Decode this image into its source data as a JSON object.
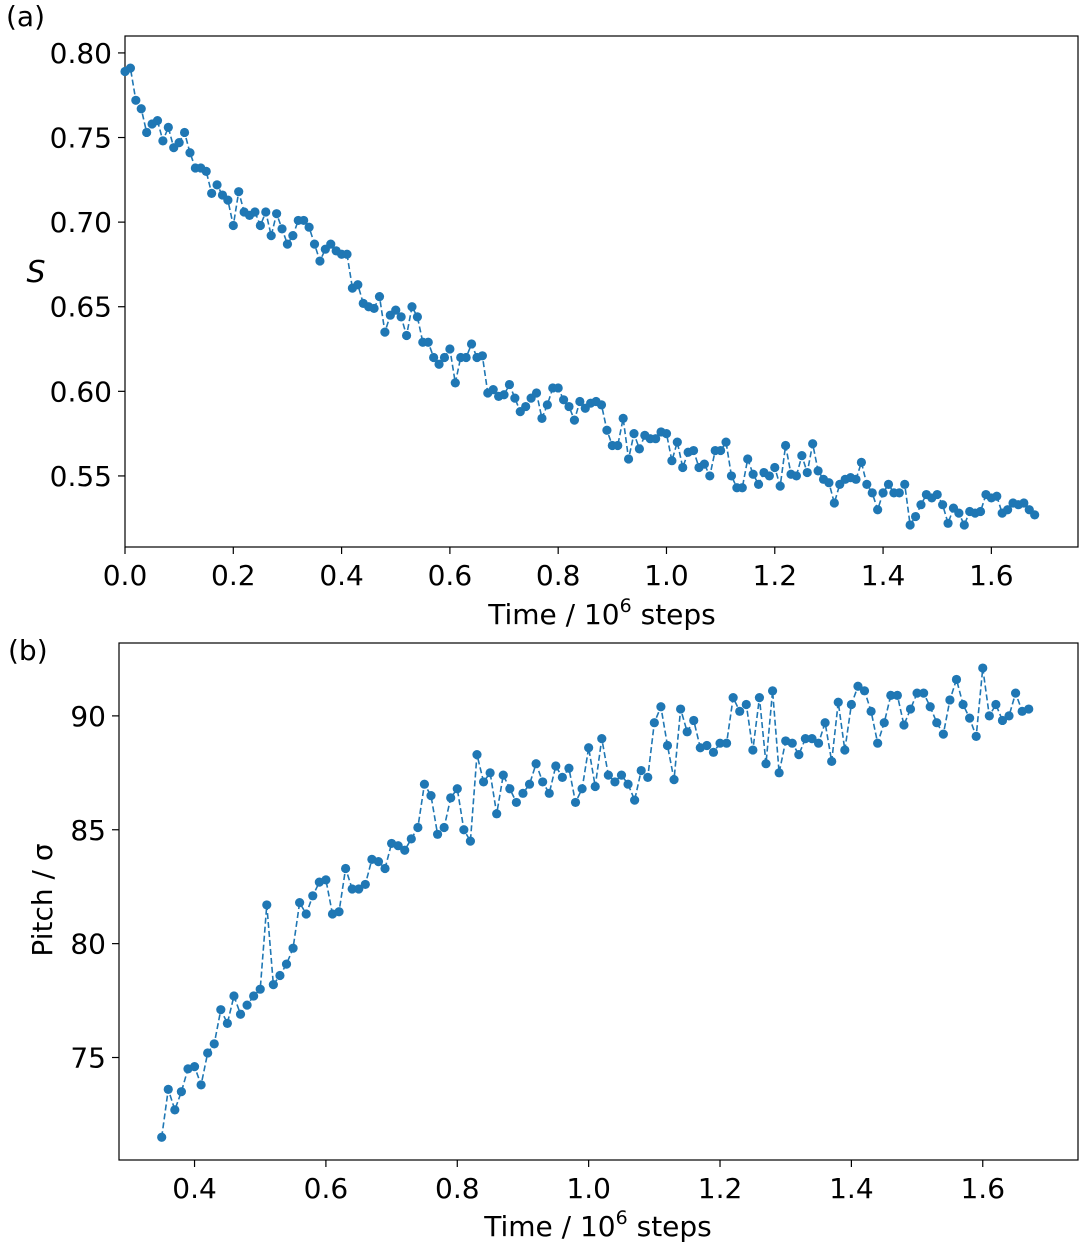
{
  "colors": {
    "series": "#1f77b4",
    "axis": "#000000",
    "background": "#ffffff"
  },
  "chart_data": [
    {
      "type": "scatter",
      "panel_label": "(a)",
      "title": "",
      "xlabel": {
        "base": "Time / 10",
        "sup": "6",
        "tail": " steps"
      },
      "ylabel": "S",
      "xlim": [
        0.0,
        1.76
      ],
      "ylim": [
        0.508,
        0.81
      ],
      "xticks": [
        "0.0",
        "0.2",
        "0.4",
        "0.6",
        "0.8",
        "1.0",
        "1.2",
        "1.4",
        "1.6"
      ],
      "yticks": [
        "0.55",
        "0.60",
        "0.65",
        "0.70",
        "0.75",
        "0.80"
      ],
      "line_style": "dashed with circle markers",
      "grid": false,
      "legend": "none",
      "x_step": 0.01,
      "x_start": 0.0,
      "y": [
        0.789,
        0.791,
        0.772,
        0.767,
        0.753,
        0.758,
        0.76,
        0.748,
        0.756,
        0.744,
        0.747,
        0.753,
        0.741,
        0.732,
        0.732,
        0.73,
        0.717,
        0.722,
        0.716,
        0.713,
        0.698,
        0.718,
        0.706,
        0.704,
        0.706,
        0.698,
        0.706,
        0.692,
        0.705,
        0.696,
        0.687,
        0.692,
        0.701,
        0.701,
        0.697,
        0.687,
        0.677,
        0.684,
        0.687,
        0.683,
        0.681,
        0.681,
        0.661,
        0.663,
        0.652,
        0.65,
        0.649,
        0.656,
        0.635,
        0.645,
        0.648,
        0.644,
        0.633,
        0.65,
        0.644,
        0.629,
        0.629,
        0.62,
        0.616,
        0.62,
        0.625,
        0.605,
        0.62,
        0.62,
        0.628,
        0.62,
        0.621,
        0.599,
        0.601,
        0.597,
        0.598,
        0.604,
        0.596,
        0.588,
        0.591,
        0.596,
        0.599,
        0.584,
        0.592,
        0.602,
        0.602,
        0.595,
        0.591,
        0.583,
        0.594,
        0.59,
        0.593,
        0.594,
        0.592,
        0.577,
        0.568,
        0.568,
        0.584,
        0.56,
        0.575,
        0.566,
        0.574,
        0.572,
        0.572,
        0.576,
        0.575,
        0.559,
        0.57,
        0.555,
        0.564,
        0.565,
        0.555,
        0.557,
        0.55,
        0.565,
        0.565,
        0.57,
        0.55,
        0.543,
        0.543,
        0.56,
        0.551,
        0.545,
        0.552,
        0.55,
        0.555,
        0.544,
        0.568,
        0.551,
        0.55,
        0.562,
        0.552,
        0.569,
        0.553,
        0.548,
        0.546,
        0.534,
        0.545,
        0.548,
        0.549,
        0.548,
        0.558,
        0.545,
        0.54,
        0.53,
        0.54,
        0.545,
        0.54,
        0.54,
        0.545,
        0.521,
        0.526,
        0.533,
        0.539,
        0.537,
        0.539,
        0.533,
        0.522,
        0.531,
        0.528,
        0.521,
        0.529,
        0.528,
        0.529,
        0.539,
        0.537,
        0.538,
        0.528,
        0.53,
        0.534,
        0.533,
        0.534,
        0.53,
        0.527
      ]
    },
    {
      "type": "scatter",
      "panel_label": "(b)",
      "title": "",
      "xlabel": {
        "base": "Time / 10",
        "sup": "6",
        "tail": " steps"
      },
      "ylabel": "Pitch / σ",
      "xlim": [
        0.285,
        1.745
      ],
      "ylim": [
        70.5,
        93.2
      ],
      "xticks": [
        "0.4",
        "0.6",
        "0.8",
        "1.0",
        "1.2",
        "1.4",
        "1.6"
      ],
      "yticks": [
        "75",
        "80",
        "85",
        "90"
      ],
      "line_style": "dashed with circle markers",
      "grid": false,
      "legend": "none",
      "x_step": 0.01,
      "x_start": 0.35,
      "y": [
        71.5,
        73.6,
        72.7,
        73.5,
        74.5,
        74.6,
        73.8,
        75.2,
        75.6,
        77.1,
        76.5,
        77.7,
        76.9,
        77.3,
        77.7,
        78.0,
        81.7,
        78.2,
        78.6,
        79.1,
        79.8,
        81.8,
        81.3,
        82.1,
        82.7,
        82.8,
        81.3,
        81.4,
        83.3,
        82.4,
        82.4,
        82.6,
        83.7,
        83.6,
        83.3,
        84.4,
        84.3,
        84.1,
        84.6,
        85.1,
        87.0,
        86.5,
        84.8,
        85.1,
        86.4,
        86.8,
        85.0,
        84.5,
        88.3,
        87.1,
        87.5,
        85.7,
        87.4,
        86.8,
        86.2,
        86.6,
        87.0,
        87.9,
        87.1,
        86.6,
        87.8,
        87.3,
        87.7,
        86.2,
        86.8,
        88.6,
        86.9,
        89.0,
        87.4,
        87.1,
        87.4,
        87.0,
        86.3,
        87.6,
        87.3,
        89.7,
        90.4,
        88.7,
        87.2,
        90.3,
        89.3,
        89.8,
        88.6,
        88.7,
        88.4,
        88.8,
        88.8,
        90.8,
        90.2,
        90.5,
        88.5,
        90.8,
        87.9,
        91.1,
        87.5,
        88.9,
        88.8,
        88.3,
        89.0,
        89.0,
        88.8,
        89.7,
        88.0,
        90.6,
        88.5,
        90.5,
        91.3,
        91.1,
        90.2,
        88.8,
        89.7,
        90.9,
        90.9,
        89.6,
        90.3,
        91.0,
        91.0,
        90.4,
        89.7,
        89.2,
        90.7,
        91.6,
        90.5,
        89.9,
        89.1,
        92.1,
        90.0,
        90.5,
        89.8,
        90.0,
        91.0,
        90.2,
        90.3
      ]
    }
  ]
}
